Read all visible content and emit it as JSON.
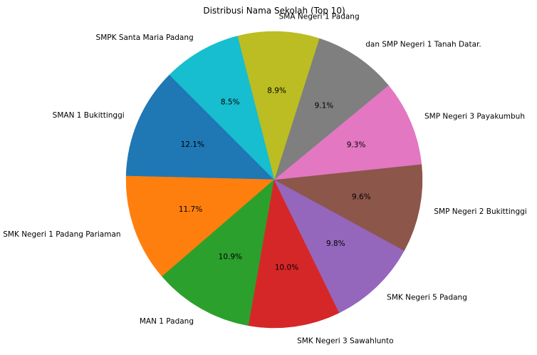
{
  "chart_data": {
    "type": "pie",
    "title": "Distribusi Nama Sekolah (Top 10)",
    "start_angle_deg": 135,
    "direction": "counterclockwise",
    "slices": [
      {
        "label": "SMAN 1 Bukittinggi",
        "value": 12.1,
        "pct_label": "12.1%",
        "color": "#1f77b4"
      },
      {
        "label": "SMK Negeri 1 Padang Pariaman",
        "value": 11.7,
        "pct_label": "11.7%",
        "color": "#ff7f0e"
      },
      {
        "label": "MAN 1 Padang",
        "value": 10.9,
        "pct_label": "10.9%",
        "color": "#2ca02c"
      },
      {
        "label": "SMK Negeri 3 Sawahlunto",
        "value": 10.0,
        "pct_label": "10.0%",
        "color": "#d62728"
      },
      {
        "label": "SMK Negeri 5 Padang",
        "value": 9.8,
        "pct_label": "9.8%",
        "color": "#9467bd"
      },
      {
        "label": "SMP Negeri 2 Bukittinggi",
        "value": 9.6,
        "pct_label": "9.6%",
        "color": "#8c564b"
      },
      {
        "label": "SMP Negeri 3 Payakumbuh",
        "value": 9.3,
        "pct_label": "9.3%",
        "color": "#e377c2"
      },
      {
        "label": "dan SMP Negeri 1 Tanah Datar.",
        "value": 9.1,
        "pct_label": "9.1%",
        "color": "#7f7f7f"
      },
      {
        "label": "SMA Negeri 1 Padang",
        "value": 8.9,
        "pct_label": "8.9%",
        "color": "#bcbd22"
      },
      {
        "label": "SMPK Santa Maria Padang",
        "value": 8.5,
        "pct_label": "8.5%",
        "color": "#17becf"
      }
    ]
  }
}
